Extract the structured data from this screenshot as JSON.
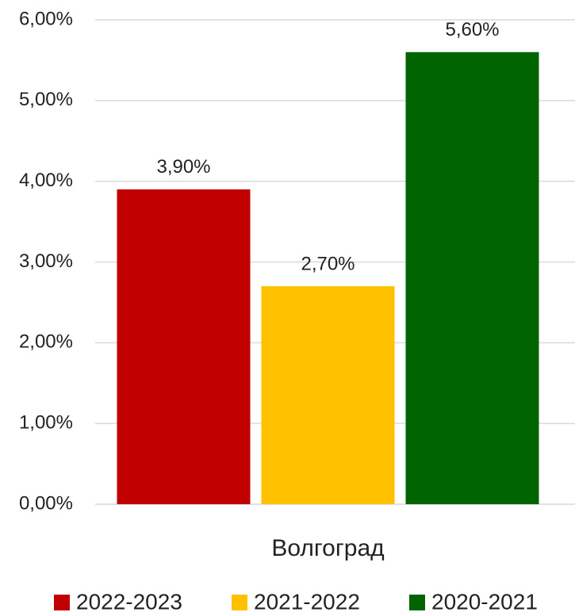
{
  "chart_data": {
    "type": "bar",
    "categories": [
      "Волгоград"
    ],
    "series": [
      {
        "name": "2022-2023",
        "color": "#c00000",
        "values": [
          3.9
        ],
        "value_labels": [
          "3,90%"
        ]
      },
      {
        "name": "2021-2022",
        "color": "#ffc000",
        "values": [
          2.7
        ],
        "value_labels": [
          "2,70%"
        ]
      },
      {
        "name": "2020-2021",
        "color": "#006400",
        "values": [
          5.6
        ],
        "value_labels": [
          "5,60%"
        ]
      }
    ],
    "ylim": [
      0,
      6
    ],
    "yticks": [
      {
        "value": 0,
        "label": "0,00%"
      },
      {
        "value": 1,
        "label": "1,00%"
      },
      {
        "value": 2,
        "label": "2,00%"
      },
      {
        "value": 3,
        "label": "3,00%"
      },
      {
        "value": 4,
        "label": "4,00%"
      },
      {
        "value": 5,
        "label": "5,00%"
      },
      {
        "value": 6,
        "label": "6,00%"
      }
    ],
    "grid": true,
    "legend": "bottom"
  }
}
